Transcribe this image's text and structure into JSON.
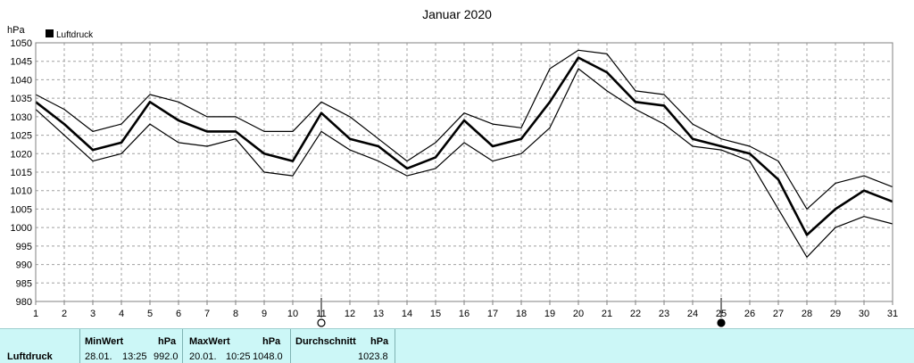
{
  "chart_data": {
    "type": "line",
    "title": "Januar 2020",
    "ylabel": "hPa",
    "legend": "Luftdruck",
    "legend_position": "top-left",
    "grid": true,
    "ylim": [
      980,
      1050
    ],
    "yticks": [
      980,
      985,
      990,
      995,
      1000,
      1005,
      1010,
      1015,
      1020,
      1025,
      1030,
      1035,
      1040,
      1045,
      1050
    ],
    "x": [
      1,
      2,
      3,
      4,
      5,
      6,
      7,
      8,
      9,
      10,
      11,
      12,
      13,
      14,
      15,
      16,
      17,
      18,
      19,
      20,
      21,
      22,
      23,
      24,
      25,
      26,
      27,
      28,
      29,
      30,
      31
    ],
    "series": [
      {
        "values": [
          1036,
          1032,
          1026,
          1028,
          1036,
          1034,
          1030,
          1030,
          1026,
          1026,
          1034,
          1030,
          1024,
          1018,
          1023,
          1031,
          1028,
          1027,
          1043,
          1048,
          1047,
          1037,
          1036,
          1028,
          1024,
          1022,
          1018,
          1005,
          1012,
          1014,
          1011
        ]
      },
      {
        "values": [
          1034,
          1028,
          1021,
          1023,
          1034,
          1029,
          1026,
          1026,
          1020,
          1018,
          1031,
          1024,
          1022,
          1016,
          1019,
          1029,
          1022,
          1024,
          1034,
          1046,
          1042,
          1034,
          1033,
          1024,
          1022,
          1020,
          1013,
          998,
          1005,
          1010,
          1007
        ]
      },
      {
        "values": [
          1032,
          1025,
          1018,
          1020,
          1028,
          1023,
          1022,
          1024,
          1015,
          1014,
          1026,
          1021,
          1018,
          1014,
          1016,
          1023,
          1018,
          1020,
          1027,
          1043,
          1037,
          1032,
          1028,
          1022,
          1021,
          1018,
          1005,
          992,
          1000,
          1003,
          1001
        ]
      }
    ],
    "moon_markers": [
      {
        "day": 11,
        "symbol": "full-moon-icon"
      },
      {
        "day": 25,
        "symbol": "new-moon-icon"
      }
    ]
  },
  "stats": {
    "row_label": "Luftdruck",
    "min": {
      "header": "MinWert",
      "unit": "hPa",
      "date": "28.01.",
      "time": "13:25",
      "value": "992.0"
    },
    "max": {
      "header": "MaxWert",
      "unit": "hPa",
      "date": "20.01.",
      "time": "10:25",
      "value": "1048.0"
    },
    "avg": {
      "header": "Durchschnitt",
      "unit": "hPa",
      "value": "1023.8"
    }
  }
}
